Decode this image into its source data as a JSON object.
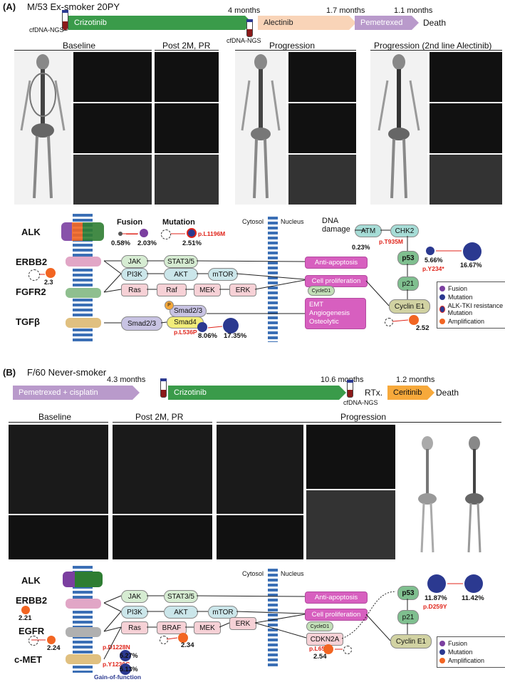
{
  "panelA": {
    "label": "(A)",
    "patient": "M/53 Ex-smoker 20PY",
    "ngs_left": "cfDNA-NGS",
    "ngs_mid": "cfDNA-NGS",
    "treatments": [
      {
        "name": "Crizotinib",
        "color": "#3a9b4a"
      },
      {
        "name": "Alectinib",
        "color": "#f9d4b8"
      },
      {
        "name": "Pemetrexed",
        "color": "#b99acb"
      }
    ],
    "durations": [
      "4 months",
      "1.7 months",
      "1.1 months"
    ],
    "end": "Death",
    "sections": [
      "Baseline",
      "Post 2M, PR",
      "Progression",
      "Progression (2nd line Alectinib)"
    ],
    "pathway": {
      "cytosol": "Cytosol",
      "nucleus": "Nucleus",
      "genes": [
        "ALK",
        "ERBB2",
        "FGFR2",
        "TGFβ"
      ],
      "fusion_label": "Fusion",
      "mutation_label": "Mutation",
      "fusion_from": "0.58%",
      "fusion_to": "2.03%",
      "mutation_to": "2.51%",
      "mutation_variant": "p.L1196M",
      "erbb2_amp": "2.3",
      "nodes": [
        "JAK",
        "STAT3/5",
        "PI3K",
        "AKT",
        "mTOR",
        "Ras",
        "Raf",
        "MEK",
        "ERK",
        "Smad2/3",
        "Smad2/3",
        "Smad4",
        "P"
      ],
      "smad4_variant": "p.L536P",
      "smad4_from": "8.06%",
      "smad4_to": "17.35%",
      "outcomes": [
        "Anti-apoptosis",
        "Cell proliferation",
        "CycleD1",
        "EMT",
        "Angiogenesis",
        "Osteolytic"
      ],
      "dna": "DNA damage",
      "atm": "ATM",
      "chk2": "CHK2",
      "atm_variant": "p.T935M",
      "atm_pct": "0.23%",
      "p53": "p53",
      "p53_from": "5.66%",
      "p53_to": "16.67%",
      "p53_variant": "p.Y234*",
      "p21": "p21",
      "cyclin": "Cyclin E1",
      "cyclin_amp": "2.52",
      "legend": [
        {
          "label": "Fusion",
          "color": "#7b3fa0"
        },
        {
          "label": "Mutation",
          "color": "#2b3990"
        },
        {
          "label": "ALK-TKI resistance Mutation",
          "color": "#2b3990"
        },
        {
          "label": "Amplification",
          "color": "#f26522"
        }
      ]
    }
  },
  "panelB": {
    "label": "(B)",
    "patient": "F/60 Never-smoker",
    "durations": [
      "4.3 months",
      "10.6 months",
      "1.2 months"
    ],
    "treatments": [
      {
        "name": "Pemetrexed + cisplatin",
        "color": "#b99acb"
      },
      {
        "name": "Crizotinib",
        "color": "#3a9b4a"
      },
      {
        "name": "Ceritinib",
        "color": "#f7a93b"
      }
    ],
    "rtx": "RTx.",
    "end": "Death",
    "ngs": "cfDNA-NGS",
    "sections": [
      "Baseline",
      "Post 2M, PR",
      "Progression"
    ],
    "pathway": {
      "cytosol": "Cytosol",
      "nucleus": "Nucleus",
      "genes": [
        "ALK",
        "ERBB2",
        "EGFR",
        "c-MET"
      ],
      "erbb2_amp": "2.21",
      "egfr_amp": "2.24",
      "met_v1": "p.D1228N",
      "met_v1_pct": "5.27%",
      "met_v2": "p.Y1230C",
      "met_v2_pct": "5.13%",
      "gof": "Gain-of-function",
      "nodes": [
        "JAK",
        "STAT3/5",
        "PI3K",
        "AKT",
        "mTOR",
        "Ras",
        "BRAF",
        "MEK",
        "ERK"
      ],
      "braf_amp": "2.34",
      "outcomes": [
        "Anti-apoptosis",
        "Cell proliferation",
        "CycleD1"
      ],
      "cdkn2a": "CDKN2A",
      "cdkn2a_variant": "p.L65",
      "cdkn2a_amp": "2.54",
      "p53": "p53",
      "p53_from": "11.87%",
      "p53_to": "11.42%",
      "p53_variant": "p.D259Y",
      "p21": "p21",
      "cyclin": "Cyclin E1",
      "legend": [
        {
          "label": "Fusion",
          "color": "#7b3fa0"
        },
        {
          "label": "Mutation",
          "color": "#2b3990"
        },
        {
          "label": "Amplification",
          "color": "#f26522"
        }
      ]
    }
  }
}
